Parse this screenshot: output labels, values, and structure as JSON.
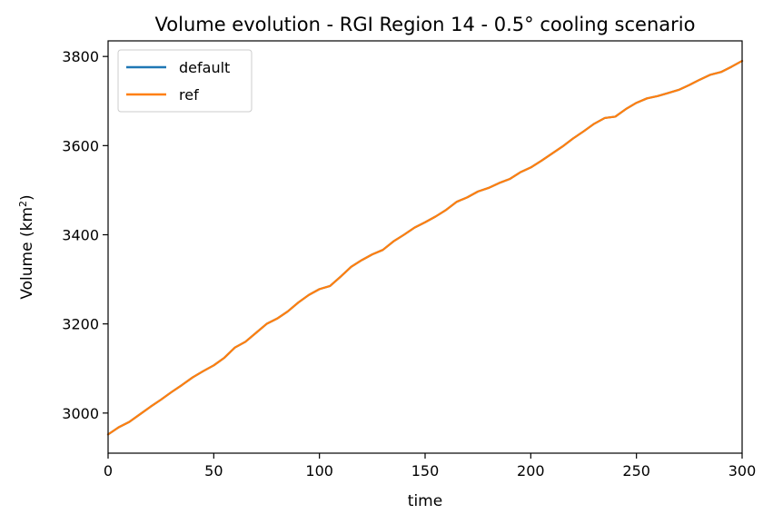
{
  "chart_data": {
    "type": "line",
    "title": "Volume evolution - RGI Region 14 - 0.5° cooling scenario",
    "xlabel": "time",
    "ylabel": "Volume (km²)",
    "xlim": [
      0,
      300
    ],
    "ylim": [
      2910,
      3835
    ],
    "xticks": [
      0,
      50,
      100,
      150,
      200,
      250,
      300
    ],
    "yticks": [
      3000,
      3200,
      3400,
      3600,
      3800
    ],
    "grid": false,
    "legend_position": "upper-left",
    "x": [
      0,
      5,
      10,
      15,
      20,
      25,
      30,
      35,
      40,
      45,
      50,
      55,
      60,
      65,
      70,
      75,
      80,
      85,
      90,
      95,
      100,
      105,
      110,
      115,
      120,
      125,
      130,
      135,
      140,
      145,
      150,
      155,
      160,
      165,
      170,
      175,
      180,
      185,
      190,
      195,
      200,
      205,
      210,
      215,
      220,
      225,
      230,
      235,
      240,
      245,
      250,
      255,
      260,
      265,
      270,
      275,
      280,
      285,
      290,
      295,
      300
    ],
    "series": [
      {
        "name": "default",
        "color": "#1f77b4",
        "values": [
          2952,
          2968,
          2980,
          2997,
          3014,
          3030,
          3047,
          3063,
          3080,
          3094,
          3107,
          3124,
          3147,
          3160,
          3180,
          3200,
          3212,
          3228,
          3248,
          3265,
          3278,
          3285,
          3306,
          3328,
          3343,
          3356,
          3366,
          3385,
          3400,
          3416,
          3428,
          3441,
          3456,
          3474,
          3484,
          3497,
          3505,
          3516,
          3525,
          3540,
          3551,
          3566,
          3582,
          3598,
          3616,
          3632,
          3649,
          3662,
          3665,
          3682,
          3696,
          3706,
          3711,
          3718,
          3725,
          3736,
          3748,
          3759,
          3765,
          3777,
          3790
        ]
      },
      {
        "name": "ref",
        "color": "#ff7f0e",
        "values": [
          2952,
          2968,
          2980,
          2997,
          3014,
          3030,
          3047,
          3063,
          3080,
          3094,
          3107,
          3124,
          3147,
          3160,
          3180,
          3200,
          3212,
          3228,
          3248,
          3265,
          3278,
          3285,
          3306,
          3328,
          3343,
          3356,
          3366,
          3385,
          3400,
          3416,
          3428,
          3441,
          3456,
          3474,
          3484,
          3497,
          3505,
          3516,
          3525,
          3540,
          3551,
          3566,
          3582,
          3598,
          3616,
          3632,
          3649,
          3662,
          3665,
          3682,
          3696,
          3706,
          3711,
          3718,
          3725,
          3736,
          3748,
          3759,
          3765,
          3777,
          3790
        ]
      }
    ]
  }
}
